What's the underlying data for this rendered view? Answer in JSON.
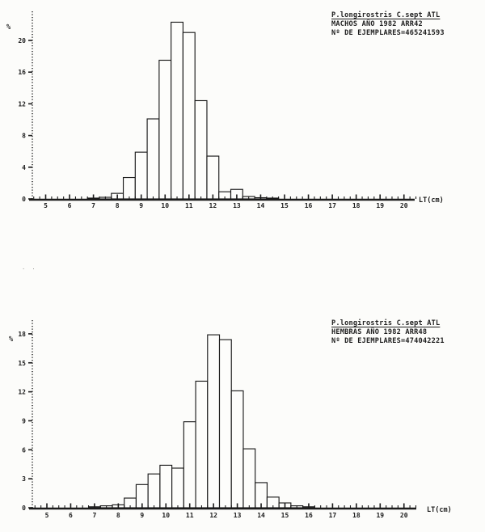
{
  "document": {
    "kind": "scanned length-frequency histograms",
    "species": "P.longirostris",
    "area": "C.sept ATL"
  },
  "chart_data": [
    {
      "type": "bar",
      "id": "machos-1982",
      "legend": {
        "line1": "P.longirostris C.sept ATL",
        "line2": "MACHOS AÑO 1982 ARR42",
        "line3": "Nº DE EJEMPLARES=465241593"
      },
      "ylabel": "%",
      "xlabel": "LT(cm)",
      "bin_width": 0.5,
      "x": [
        7.0,
        7.5,
        8.0,
        8.5,
        9.0,
        9.5,
        10.0,
        10.5,
        11.0,
        11.5,
        12.0,
        12.5,
        13.0,
        13.5,
        14.0,
        14.5
      ],
      "values": [
        0.1,
        0.2,
        0.7,
        2.7,
        5.9,
        10.1,
        17.5,
        22.3,
        21.0,
        12.4,
        5.4,
        0.9,
        1.2,
        0.3,
        0.15,
        0.1
      ],
      "xticks": [
        5,
        6,
        7,
        8,
        9,
        10,
        11,
        12,
        13,
        14,
        15,
        16,
        17,
        18,
        19,
        20
      ],
      "yticks": [
        0,
        4,
        8,
        12,
        16,
        20
      ],
      "xlim": [
        4.5,
        20.6
      ],
      "ylim": [
        0,
        23.5
      ],
      "grid": false,
      "legend_position": "top-right"
    },
    {
      "type": "bar",
      "id": "hembras-1982",
      "legend": {
        "line1": "P.longirostris C.sept ATL",
        "line2": "HEMBRAS AÑO 1982 ARR48",
        "line3": "Nº DE EJEMPLARES=474042221"
      },
      "ylabel": "%",
      "xlabel": "LT(cm)",
      "bin_width": 0.5,
      "x": [
        7.0,
        7.5,
        8.0,
        8.5,
        9.0,
        9.5,
        10.0,
        10.5,
        11.0,
        11.5,
        12.0,
        12.5,
        13.0,
        13.5,
        14.0,
        14.5,
        15.0,
        15.5,
        16.0
      ],
      "values": [
        0.1,
        0.2,
        0.3,
        1.0,
        2.4,
        3.5,
        4.4,
        4.1,
        8.9,
        13.1,
        17.9,
        17.4,
        12.1,
        6.1,
        2.6,
        1.1,
        0.5,
        0.2,
        0.1
      ],
      "xticks": [
        5,
        6,
        7,
        8,
        9,
        10,
        11,
        12,
        13,
        14,
        15,
        16,
        17,
        18,
        19,
        20
      ],
      "yticks": [
        0,
        3,
        6,
        9,
        12,
        15,
        18
      ],
      "xlim": [
        4.5,
        20.6
      ],
      "ylim": [
        0,
        19.4
      ],
      "grid": false,
      "legend_position": "top-right"
    }
  ],
  "artifact_marks": ". ."
}
